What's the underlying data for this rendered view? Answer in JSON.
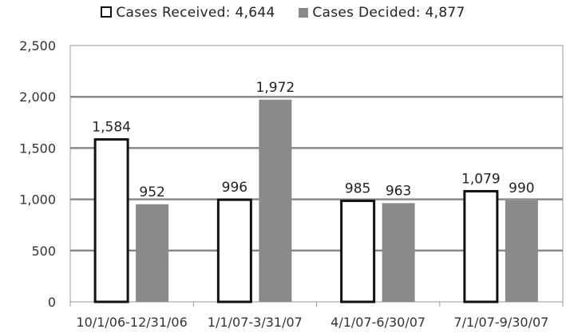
{
  "chart_data": {
    "type": "bar",
    "categories": [
      "10/1/06-12/31/06",
      "1/1/07-3/31/07",
      "4/1/07-6/30/07",
      "7/1/07-9/30/07"
    ],
    "series": [
      {
        "name": "Cases Received: 4,644",
        "values": [
          1584,
          996,
          985,
          1079
        ],
        "labels": [
          "1,584",
          "996",
          "985",
          "1,079"
        ],
        "color": "#ffffff",
        "stroke": "#111111"
      },
      {
        "name": "Cases Decided: 4,877",
        "values": [
          952,
          1972,
          963,
          990
        ],
        "labels": [
          "952",
          "1,972",
          "963",
          "990"
        ],
        "color": "#8a8a8a"
      }
    ],
    "yticks": [
      "2,500",
      "2,000",
      "1,500",
      "1,000",
      "500",
      "0"
    ],
    "ytick_values": [
      2500,
      2000,
      1500,
      1000,
      500,
      0
    ],
    "ylim": [
      0,
      2500
    ],
    "grid": true,
    "legend": "top-center"
  }
}
